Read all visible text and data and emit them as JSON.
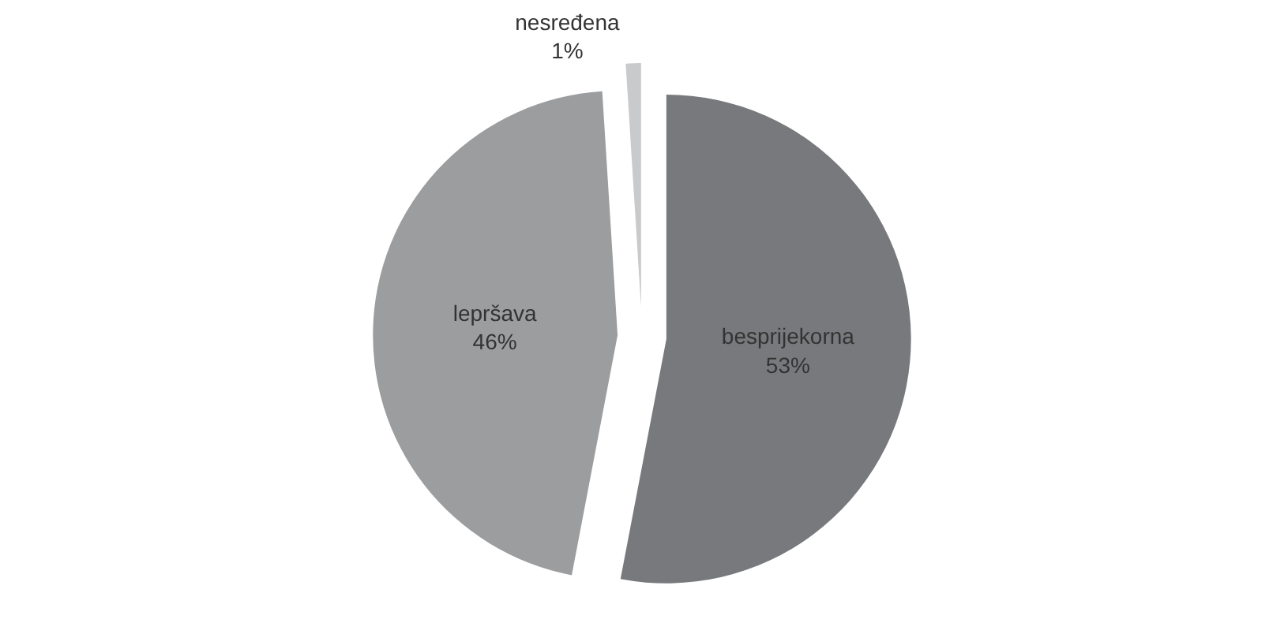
{
  "chart_data": {
    "type": "pie",
    "categories": [
      "besprijekorna",
      "lepršava",
      "nesređena"
    ],
    "values": [
      53,
      46,
      1
    ],
    "value_labels": [
      "53%",
      "46%",
      "1%"
    ],
    "colors": [
      "#77797c",
      "#9b9d9f",
      "#c9cacb"
    ],
    "legend": false
  }
}
